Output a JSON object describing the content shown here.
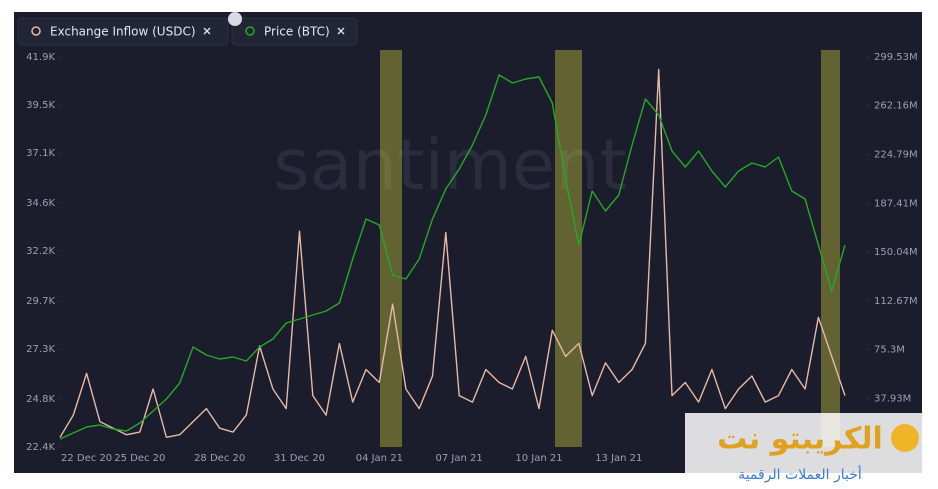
{
  "chart_data": {
    "type": "line",
    "categories": [
      null,
      null,
      "22 Dec 20",
      null,
      null,
      null,
      "25 Dec 20",
      null,
      null,
      null,
      null,
      null,
      "28 Dec 20",
      null,
      null,
      null,
      null,
      null,
      "31 Dec 20",
      null,
      null,
      null,
      null,
      null,
      "04 Jan 21",
      null,
      null,
      null,
      null,
      null,
      "07 Jan 21",
      null,
      null,
      null,
      null,
      null,
      "10 Jan 21",
      null,
      null,
      null,
      null,
      null,
      "13 Jan 21",
      null,
      null,
      null,
      null,
      null,
      null,
      null,
      null,
      null,
      null,
      null,
      null,
      null,
      null,
      null,
      null,
      null
    ],
    "series": [
      {
        "name": "Exchange Inflow (USDC)",
        "color": "#e6b9a6",
        "axis": "y2",
        "values": [
          8,
          25,
          57,
          20,
          15,
          10,
          12,
          45,
          8,
          10,
          20,
          30,
          15,
          12,
          25,
          78,
          45,
          30,
          166,
          40,
          25,
          80,
          35,
          60,
          50,
          110,
          45,
          30,
          55,
          165,
          40,
          35,
          60,
          50,
          45,
          70,
          30,
          90,
          70,
          80,
          40,
          65,
          50,
          60,
          80,
          290,
          40,
          50,
          35,
          60,
          30,
          45,
          55,
          35,
          40,
          60,
          45,
          100,
          70,
          40
        ]
      },
      {
        "name": "Price (BTC)",
        "color": "#26a826",
        "values": [
          22.8,
          23.1,
          23.4,
          23.5,
          23.3,
          23.2,
          23.6,
          24.2,
          24.8,
          25.6,
          27.4,
          27.0,
          26.8,
          26.9,
          26.7,
          27.4,
          27.8,
          28.6,
          28.8,
          29.0,
          29.2,
          29.6,
          31.8,
          33.8,
          33.5,
          31.0,
          30.8,
          31.8,
          33.8,
          35.3,
          36.3,
          37.5,
          39.0,
          41.0,
          40.6,
          40.8,
          40.9,
          39.6,
          35.8,
          32.5,
          35.2,
          34.2,
          35.0,
          37.5,
          39.8,
          39.0,
          37.2,
          36.4,
          37.2,
          36.2,
          35.4,
          36.2,
          36.6,
          36.4,
          36.9,
          35.2,
          34.8,
          32.5,
          30.2,
          32.5
        ]
      }
    ],
    "ylim": [
      22.4,
      41.9
    ],
    "yticks": [
      {
        "value": 22.4,
        "label": "22.4K"
      },
      {
        "value": 24.8,
        "label": "24.8K"
      },
      {
        "value": 27.3,
        "label": "27.3K"
      },
      {
        "value": 29.7,
        "label": "29.7K"
      },
      {
        "value": 32.2,
        "label": "32.2K"
      },
      {
        "value": 34.6,
        "label": "34.6K"
      },
      {
        "value": 37.1,
        "label": "37.1K"
      },
      {
        "value": 39.5,
        "label": "39.5K"
      },
      {
        "value": 41.9,
        "label": "41.9K"
      }
    ],
    "y2lim": [
      0.56,
      299.53
    ],
    "y2ticks": [
      {
        "value": 37.93,
        "label": "37.93M"
      },
      {
        "value": 75.3,
        "label": "75.3M"
      },
      {
        "value": 112.67,
        "label": "112.67M"
      },
      {
        "value": 150.04,
        "label": "150.04M"
      },
      {
        "value": 187.41,
        "label": "187.41M"
      },
      {
        "value": 224.79,
        "label": "224.79M"
      },
      {
        "value": 262.16,
        "label": "262.16M"
      },
      {
        "value": 299.53,
        "label": "299.53M"
      }
    ]
  },
  "watermark": "santiment",
  "logo": {
    "title": "الكريبتو نت",
    "subtitle": "أخبار العملات الرقمية"
  }
}
